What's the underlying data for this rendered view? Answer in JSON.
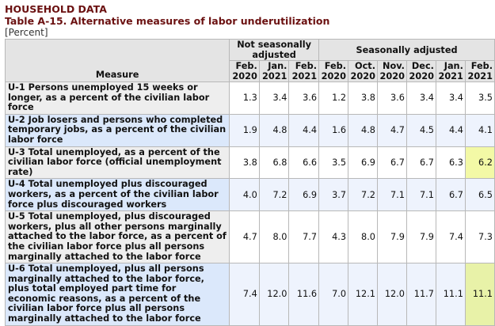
{
  "header": {
    "section": "HOUSEHOLD DATA",
    "title": "Table A-15. Alternative measures of labor underutilization",
    "unit": "[Percent]"
  },
  "table": {
    "measure_header": "Measure",
    "groups": [
      {
        "label": "Not seasonally adjusted"
      },
      {
        "label": "Seasonally adjusted"
      }
    ],
    "columns": [
      [
        "Feb.",
        "2020"
      ],
      [
        "Jan.",
        "2021"
      ],
      [
        "Feb.",
        "2021"
      ],
      [
        "Feb.",
        "2020"
      ],
      [
        "Oct.",
        "2020"
      ],
      [
        "Nov.",
        "2020"
      ],
      [
        "Dec.",
        "2020"
      ],
      [
        "Jan.",
        "2021"
      ],
      [
        "Feb.",
        "2021"
      ]
    ],
    "rows": [
      {
        "label": "U-1 Persons unemployed 15 weeks or longer, as a percent of the civilian labor force",
        "values": [
          "1.3",
          "3.4",
          "3.6",
          "1.2",
          "3.8",
          "3.6",
          "3.4",
          "3.4",
          "3.5"
        ]
      },
      {
        "label": "U-2 Job losers and persons who completed temporary jobs, as a percent of the civilian labor force",
        "values": [
          "1.9",
          "4.8",
          "4.4",
          "1.6",
          "4.8",
          "4.7",
          "4.5",
          "4.4",
          "4.1"
        ]
      },
      {
        "label": "U-3 Total unemployed, as a percent of the civilian labor force (official unemployment rate)",
        "values": [
          "3.8",
          "6.8",
          "6.6",
          "3.5",
          "6.9",
          "6.7",
          "6.7",
          "6.3",
          "6.2"
        ]
      },
      {
        "label": "U-4 Total unemployed plus discouraged workers, as a percent of the civilian labor force plus discouraged workers",
        "values": [
          "4.0",
          "7.2",
          "6.9",
          "3.7",
          "7.2",
          "7.1",
          "7.1",
          "6.7",
          "6.5"
        ]
      },
      {
        "label": "U-5 Total unemployed, plus discouraged workers, plus all other persons marginally attached to the labor force, as a percent of the civilian labor force plus all persons marginally attached to the labor force",
        "values": [
          "4.7",
          "8.0",
          "7.7",
          "4.3",
          "8.0",
          "7.9",
          "7.9",
          "7.4",
          "7.3"
        ]
      },
      {
        "label": "U-6 Total unemployed, plus all persons marginally attached to the labor force, plus total employed part time for economic reasons, as a percent of the civilian labor force plus all persons marginally attached to the labor force",
        "values": [
          "7.4",
          "12.0",
          "11.6",
          "7.0",
          "12.1",
          "12.0",
          "11.7",
          "11.1",
          "11.1"
        ]
      }
    ],
    "highlight_color": "#f3f9a6"
  }
}
